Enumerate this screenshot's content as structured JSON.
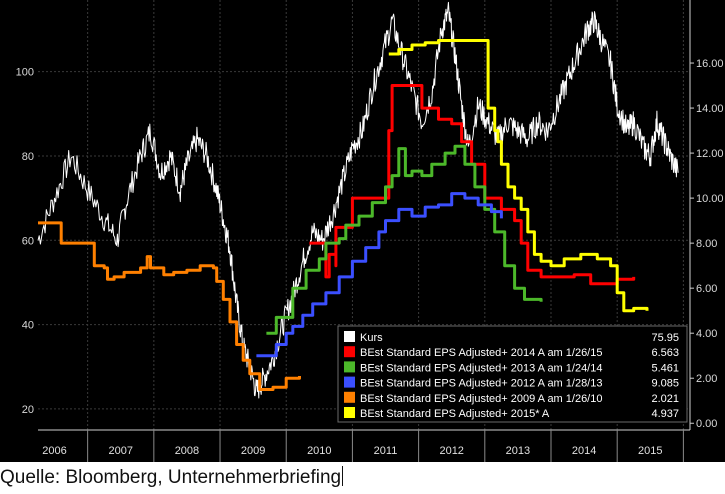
{
  "source_label": "Quelle: Bloomberg, Unternehmerbriefing",
  "chart_data": {
    "type": "line",
    "title": "",
    "xlabel": "",
    "ylabel": "",
    "x_ticks": [
      "2006",
      "2007",
      "2008",
      "2009",
      "2010",
      "2011",
      "2012",
      "2013",
      "2014",
      "2015"
    ],
    "left_axis": {
      "range": [
        15,
        117
      ],
      "ticks": [
        20,
        40,
        60,
        80,
        100
      ]
    },
    "right_axis": {
      "range": [
        -0.3,
        18.8
      ],
      "ticks": [
        "0.00",
        "2.00",
        "4.00",
        "6.00",
        "8.00",
        "10.00",
        "12.00",
        "14.00",
        "16.00"
      ]
    },
    "grid": true,
    "legend_position": "bottom-right",
    "series": [
      {
        "name": "Kurs",
        "value_label": "75.95",
        "color": "#ffffff",
        "axis": "left",
        "style": "noisy",
        "points": [
          [
            2005.75,
            60
          ],
          [
            2006.0,
            70
          ],
          [
            2006.25,
            80
          ],
          [
            2006.5,
            72
          ],
          [
            2006.75,
            65
          ],
          [
            2006.95,
            60
          ],
          [
            2007.1,
            70
          ],
          [
            2007.3,
            80
          ],
          [
            2007.45,
            86
          ],
          [
            2007.6,
            76
          ],
          [
            2007.75,
            80
          ],
          [
            2007.9,
            72
          ],
          [
            2008.0,
            78
          ],
          [
            2008.15,
            84
          ],
          [
            2008.3,
            80
          ],
          [
            2008.45,
            72
          ],
          [
            2008.55,
            65
          ],
          [
            2008.65,
            58
          ],
          [
            2008.75,
            45
          ],
          [
            2008.85,
            35
          ],
          [
            2008.95,
            30
          ],
          [
            2009.05,
            24
          ],
          [
            2009.15,
            27
          ],
          [
            2009.3,
            32
          ],
          [
            2009.45,
            40
          ],
          [
            2009.6,
            47
          ],
          [
            2009.75,
            55
          ],
          [
            2009.9,
            62
          ],
          [
            2010.05,
            60
          ],
          [
            2010.2,
            66
          ],
          [
            2010.35,
            74
          ],
          [
            2010.5,
            82
          ],
          [
            2010.65,
            86
          ],
          [
            2010.8,
            96
          ],
          [
            2010.95,
            104
          ],
          [
            2011.1,
            112
          ],
          [
            2011.25,
            104
          ],
          [
            2011.4,
            96
          ],
          [
            2011.55,
            88
          ],
          [
            2011.7,
            95
          ],
          [
            2011.85,
            110
          ],
          [
            2011.95,
            114
          ],
          [
            2012.05,
            104
          ],
          [
            2012.15,
            92
          ],
          [
            2012.25,
            82
          ],
          [
            2012.4,
            92
          ],
          [
            2012.55,
            88
          ],
          [
            2012.7,
            84
          ],
          [
            2012.85,
            88
          ],
          [
            2013.0,
            86
          ],
          [
            2013.15,
            84
          ],
          [
            2013.3,
            88
          ],
          [
            2013.45,
            86
          ],
          [
            2013.6,
            92
          ],
          [
            2013.75,
            98
          ],
          [
            2013.9,
            104
          ],
          [
            2014.05,
            110
          ],
          [
            2014.15,
            112
          ],
          [
            2014.25,
            108
          ],
          [
            2014.4,
            102
          ],
          [
            2014.5,
            92
          ],
          [
            2014.65,
            86
          ],
          [
            2014.75,
            88
          ],
          [
            2014.9,
            82
          ],
          [
            2015.0,
            80
          ],
          [
            2015.1,
            88
          ],
          [
            2015.2,
            84
          ],
          [
            2015.3,
            80
          ],
          [
            2015.42,
            76
          ]
        ]
      },
      {
        "name": "BEst Standard EPS Adjusted+ 2014 A am 1/26/15",
        "value_label": "6.563",
        "color": "#ff0000",
        "axis": "right",
        "style": "step",
        "points": [
          [
            2009.85,
            8.0
          ],
          [
            2010.1,
            6.5
          ],
          [
            2010.15,
            7.5
          ],
          [
            2010.25,
            7.0
          ],
          [
            2010.25,
            8.7
          ],
          [
            2010.5,
            8.7
          ],
          [
            2010.5,
            10.0
          ],
          [
            2010.75,
            10.0
          ],
          [
            2011.05,
            13.0
          ],
          [
            2011.1,
            15.0
          ],
          [
            2011.55,
            15.0
          ],
          [
            2011.55,
            14.0
          ],
          [
            2011.75,
            14.0
          ],
          [
            2011.8,
            13.5
          ],
          [
            2012.0,
            13.3
          ],
          [
            2012.15,
            12.5
          ],
          [
            2012.3,
            11.5
          ],
          [
            2012.5,
            10.0
          ],
          [
            2012.75,
            9.5
          ],
          [
            2012.95,
            9.0
          ],
          [
            2013.05,
            8.0
          ],
          [
            2013.15,
            6.8
          ],
          [
            2013.35,
            6.5
          ],
          [
            2013.6,
            6.5
          ],
          [
            2013.85,
            6.6
          ],
          [
            2014.1,
            6.2
          ],
          [
            2014.3,
            6.2
          ],
          [
            2014.5,
            6.4
          ],
          [
            2014.75,
            6.5
          ]
        ]
      },
      {
        "name": "BEst Standard EPS Adjusted+ 2013 A am 1/24/14",
        "value_label": "5.461",
        "color": "#4cb82a",
        "axis": "right",
        "style": "step",
        "points": [
          [
            2009.2,
            4.0
          ],
          [
            2009.35,
            4.0
          ],
          [
            2009.35,
            4.7
          ],
          [
            2009.55,
            4.7
          ],
          [
            2009.6,
            6.0
          ],
          [
            2009.75,
            6.0
          ],
          [
            2009.8,
            6.8
          ],
          [
            2010.0,
            7.3
          ],
          [
            2010.1,
            8.0
          ],
          [
            2010.3,
            8.2
          ],
          [
            2010.4,
            8.8
          ],
          [
            2010.6,
            9.2
          ],
          [
            2010.8,
            9.8
          ],
          [
            2011.0,
            10.5
          ],
          [
            2011.1,
            11.0
          ],
          [
            2011.2,
            12.2
          ],
          [
            2011.3,
            11.0
          ],
          [
            2011.4,
            11.2
          ],
          [
            2011.55,
            11.0
          ],
          [
            2011.7,
            11.5
          ],
          [
            2011.9,
            12.0
          ],
          [
            2012.05,
            12.3
          ],
          [
            2012.2,
            11.5
          ],
          [
            2012.35,
            10.5
          ],
          [
            2012.5,
            9.5
          ],
          [
            2012.65,
            8.5
          ],
          [
            2012.8,
            7.0
          ],
          [
            2012.95,
            6.0
          ],
          [
            2013.1,
            5.5
          ],
          [
            2013.35,
            5.4
          ]
        ]
      },
      {
        "name": "BEst Standard EPS Adjusted+ 2012 A am 1/28/13",
        "value_label": "9.085",
        "color": "#3b4fff",
        "axis": "right",
        "style": "step",
        "points": [
          [
            2009.05,
            3.0
          ],
          [
            2009.3,
            3.0
          ],
          [
            2009.35,
            3.5
          ],
          [
            2009.5,
            4.0
          ],
          [
            2009.6,
            4.3
          ],
          [
            2009.75,
            4.8
          ],
          [
            2009.9,
            5.3
          ],
          [
            2010.1,
            5.8
          ],
          [
            2010.3,
            6.5
          ],
          [
            2010.5,
            7.2
          ],
          [
            2010.7,
            7.8
          ],
          [
            2010.9,
            8.5
          ],
          [
            2011.0,
            9.0
          ],
          [
            2011.2,
            9.5
          ],
          [
            2011.4,
            9.2
          ],
          [
            2011.6,
            9.6
          ],
          [
            2011.8,
            9.7
          ],
          [
            2012.0,
            10.2
          ],
          [
            2012.2,
            10.0
          ],
          [
            2012.4,
            9.7
          ],
          [
            2012.6,
            9.4
          ],
          [
            2012.75,
            9.1
          ]
        ]
      },
      {
        "name": "BEst Standard EPS Adjusted+ 2009 A am 1/26/10",
        "value_label": "2.021",
        "color": "#ff8000",
        "axis": "right",
        "style": "step",
        "points": [
          [
            2005.75,
            8.9
          ],
          [
            2006.1,
            8.9
          ],
          [
            2006.1,
            8.0
          ],
          [
            2006.15,
            8.0
          ],
          [
            2006.55,
            8.0
          ],
          [
            2006.6,
            7.0
          ],
          [
            2006.75,
            6.9
          ],
          [
            2006.8,
            6.4
          ],
          [
            2006.9,
            6.5
          ],
          [
            2007.05,
            6.7
          ],
          [
            2007.3,
            6.9
          ],
          [
            2007.4,
            7.4
          ],
          [
            2007.45,
            6.9
          ],
          [
            2007.65,
            6.6
          ],
          [
            2007.8,
            6.7
          ],
          [
            2008.0,
            6.8
          ],
          [
            2008.2,
            7.0
          ],
          [
            2008.4,
            6.9
          ],
          [
            2008.45,
            6.3
          ],
          [
            2008.55,
            5.5
          ],
          [
            2008.65,
            4.5
          ],
          [
            2008.75,
            3.5
          ],
          [
            2008.85,
            2.8
          ],
          [
            2008.95,
            2.2
          ],
          [
            2009.1,
            1.5
          ],
          [
            2009.3,
            1.6
          ],
          [
            2009.5,
            2.0
          ],
          [
            2009.7,
            2.1
          ]
        ]
      },
      {
        "name": "BEst Standard EPS Adjusted+ 2015* A",
        "value_label": "4.937",
        "color": "#ffff00",
        "axis": "right",
        "style": "step",
        "points": [
          [
            2011.05,
            16.4
          ],
          [
            2011.2,
            16.6
          ],
          [
            2011.4,
            16.8
          ],
          [
            2011.6,
            16.9
          ],
          [
            2011.8,
            17.0
          ],
          [
            2012.1,
            17.0
          ],
          [
            2012.1,
            17.0
          ],
          [
            2012.55,
            14.0
          ],
          [
            2012.65,
            13.0
          ],
          [
            2012.7,
            12.5
          ],
          [
            2012.75,
            11.5
          ],
          [
            2012.85,
            10.5
          ],
          [
            2012.95,
            10.0
          ],
          [
            2013.05,
            9.5
          ],
          [
            2013.15,
            8.5
          ],
          [
            2013.25,
            7.5
          ],
          [
            2013.35,
            7.2
          ],
          [
            2013.5,
            7.0
          ],
          [
            2013.7,
            7.3
          ],
          [
            2013.95,
            7.5
          ],
          [
            2014.2,
            7.3
          ],
          [
            2014.4,
            7.0
          ],
          [
            2014.5,
            5.8
          ],
          [
            2014.6,
            5.0
          ],
          [
            2014.75,
            5.1
          ],
          [
            2014.95,
            5.0
          ]
        ]
      }
    ]
  }
}
